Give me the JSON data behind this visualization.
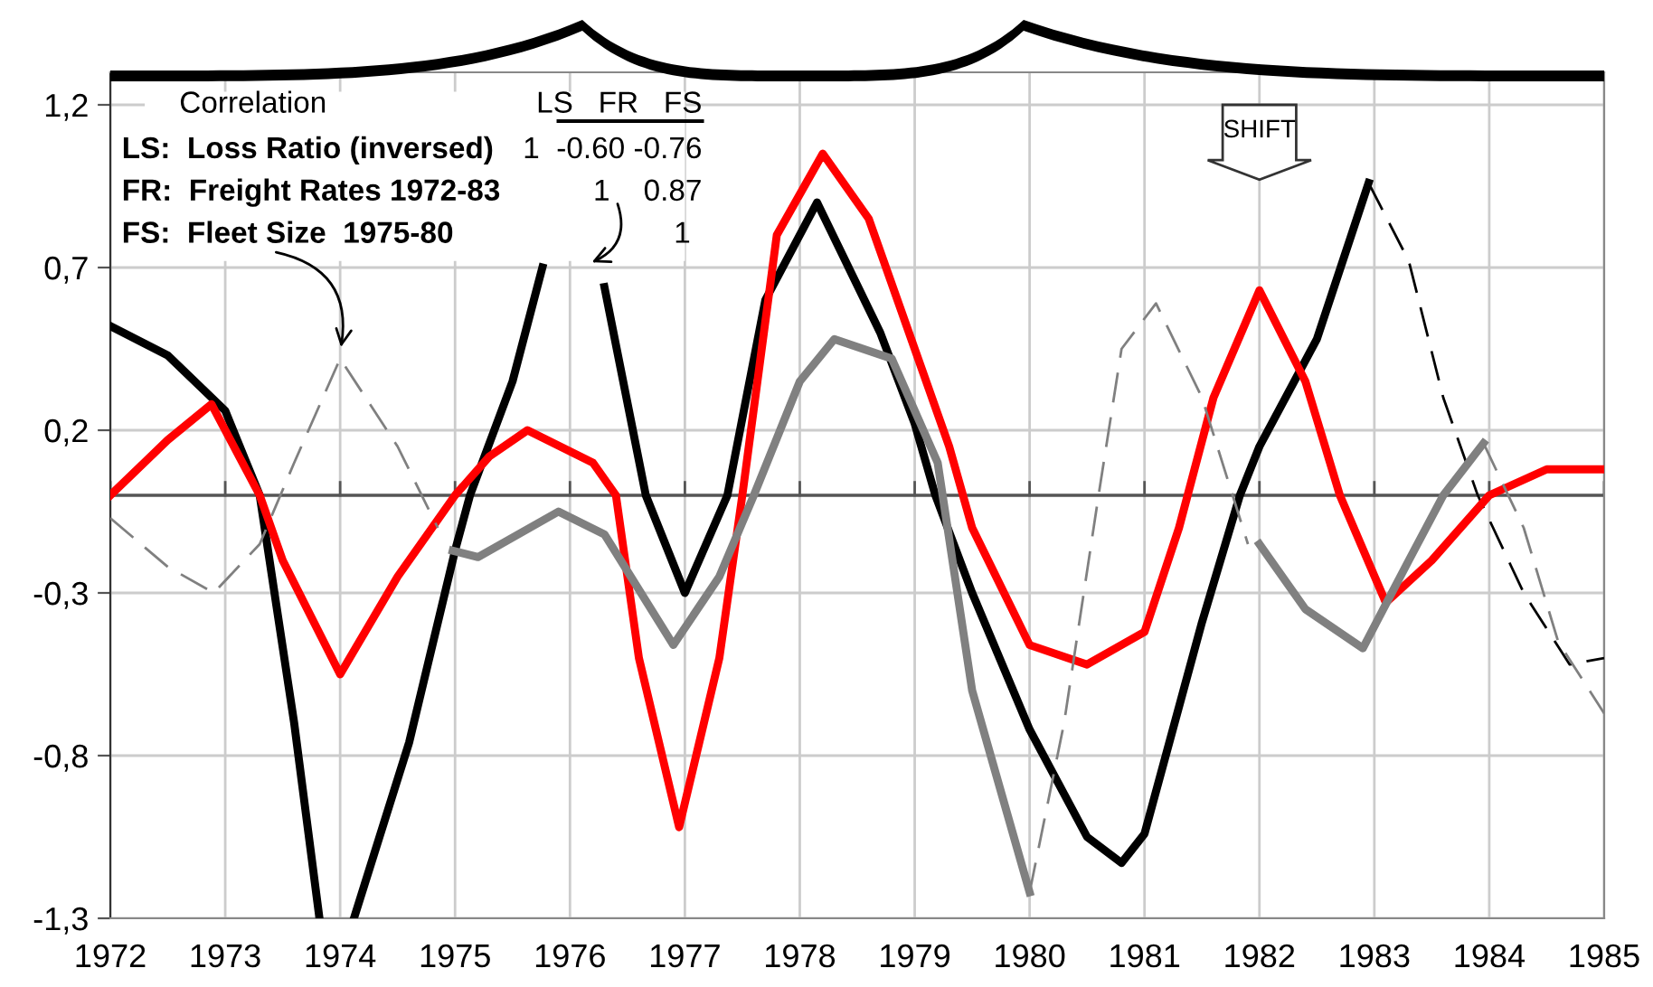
{
  "chart_data": {
    "type": "line",
    "xlim": [
      1972,
      1985
    ],
    "xticks": [
      1972,
      1973,
      1974,
      1975,
      1976,
      1977,
      1978,
      1979,
      1980,
      1981,
      1982,
      1983,
      1984,
      1985
    ],
    "ylim": [
      -1.3,
      1.3
    ],
    "yticks": [
      {
        "value": -1.3,
        "label": "-1,3"
      },
      {
        "value": -0.8,
        "label": "-0,8"
      },
      {
        "value": -0.3,
        "label": "-0,3"
      },
      {
        "value": 0.2,
        "label": "0,2"
      },
      {
        "value": 0.7,
        "label": "0,7"
      },
      {
        "value": 1.2,
        "label": "1,2"
      }
    ],
    "grid": true,
    "ref_lines": [
      {
        "axis": "y",
        "value": 0,
        "color": "#555555"
      }
    ],
    "series": [
      {
        "color": "#000000",
        "line_style": "solid",
        "x": [
          1972,
          1972.5,
          1973,
          1973.3,
          1973.6,
          1973.82,
          1973.97,
          1974.12,
          1974.6,
          1975,
          1975.13,
          1975.5,
          1975.76,
          1976.05,
          1976.3,
          1976.66,
          1977,
          1977.37,
          1977.7,
          1978.15,
          1978.7,
          1979,
          1979.18,
          1979.5,
          1980,
          1980.5,
          1980.8,
          1981,
          1981.5,
          1981.83,
          1982,
          1982.5,
          1982.95
        ],
        "values": [
          0.52,
          0.43,
          0.26,
          0.0,
          -0.7,
          -1.3,
          null,
          -1.3,
          -0.76,
          -0.17,
          0.0,
          0.35,
          0.7,
          null,
          0.64,
          0.0,
          -0.3,
          0.0,
          0.6,
          0.9,
          0.5,
          0.22,
          0.0,
          -0.3,
          -0.72,
          -1.05,
          -1.13,
          -1.04,
          -0.39,
          0.0,
          0.15,
          0.48,
          0.96
        ]
      },
      {
        "color": "#000000",
        "line_style": "dashed",
        "x": [
          1982.95,
          1983.3,
          1983.6,
          1983.9,
          1984.3,
          1984.7,
          1985
        ],
        "values": [
          0.96,
          0.72,
          0.3,
          0.0,
          -0.3,
          -0.52,
          -0.5
        ]
      },
      {
        "color": "#ff0000",
        "line_style": "solid",
        "x": [
          1972,
          1972.5,
          1972.88,
          1973.3,
          1973.5,
          1974,
          1974.5,
          1975,
          1975.3,
          1975.63,
          1976.2,
          1976.4,
          1976.6,
          1976.95,
          1977.3,
          1977.5,
          1977.8,
          1978.2,
          1978.6,
          1979,
          1979.3,
          1979.5,
          1980,
          1980.5,
          1981,
          1981.3,
          1981.6,
          1982,
          1982.4,
          1982.7,
          1983.1,
          1983.5,
          1984,
          1984.5,
          1985
        ],
        "values": [
          0.0,
          0.17,
          0.28,
          0.0,
          -0.2,
          -0.55,
          -0.25,
          0.0,
          0.12,
          0.2,
          0.1,
          0.0,
          -0.5,
          -1.02,
          -0.5,
          0.0,
          0.8,
          1.05,
          0.85,
          0.45,
          0.15,
          -0.1,
          -0.46,
          -0.52,
          -0.42,
          -0.1,
          0.3,
          0.63,
          0.35,
          0.0,
          -0.33,
          -0.2,
          0.0,
          0.08,
          0.08
        ]
      },
      {
        "color": "#808080",
        "line_style": "dashed",
        "x": [
          1972,
          1972.5,
          1972.9,
          1973.3,
          1973.6,
          1974,
          1974.5,
          1974.85
        ],
        "values": [
          -0.07,
          -0.22,
          -0.3,
          -0.15,
          0.1,
          0.42,
          0.15,
          -0.1
        ]
      },
      {
        "color": "#808080",
        "line_style": "solid",
        "x": [
          1974.98,
          1975.2,
          1975.9,
          1976.3,
          1976.9,
          1977.3,
          1977.6,
          1978,
          1978.3,
          1978.8,
          1979.2,
          1979.5,
          1980
        ],
        "values": [
          -0.17,
          -0.19,
          -0.05,
          -0.12,
          -0.46,
          -0.25,
          0.0,
          0.35,
          0.48,
          0.42,
          0.1,
          -0.6,
          -1.22
        ]
      },
      {
        "color": "#808080",
        "line_style": "dashed",
        "x": [
          1980,
          1980.3,
          1980.6,
          1980.8,
          1981.1,
          1981.5,
          1981.9
        ],
        "values": [
          -1.22,
          -0.7,
          0.0,
          0.45,
          0.59,
          0.3,
          -0.15
        ]
      },
      {
        "color": "#808080",
        "line_style": "solid",
        "x": [
          1982,
          1982.4,
          1982.9,
          1983.3,
          1983.6,
          1983.95
        ],
        "values": [
          -0.15,
          -0.35,
          -0.47,
          -0.2,
          0.0,
          0.16
        ]
      },
      {
        "color": "#808080",
        "line_style": "dashed",
        "x": [
          1983.95,
          1984.3,
          1984.6,
          1985
        ],
        "values": [
          0.16,
          -0.1,
          -0.45,
          -0.67
        ]
      }
    ],
    "annotations": [
      "Correlation",
      "LS   FR   FS",
      "LS:  Loss Ratio (inversed)",
      "1  -0.60 -0.76",
      "FR:  Freight Rates 1972-83",
      "1    0.87",
      "FS:  Fleet Size  1975-80",
      "1",
      "SHIFT"
    ]
  }
}
